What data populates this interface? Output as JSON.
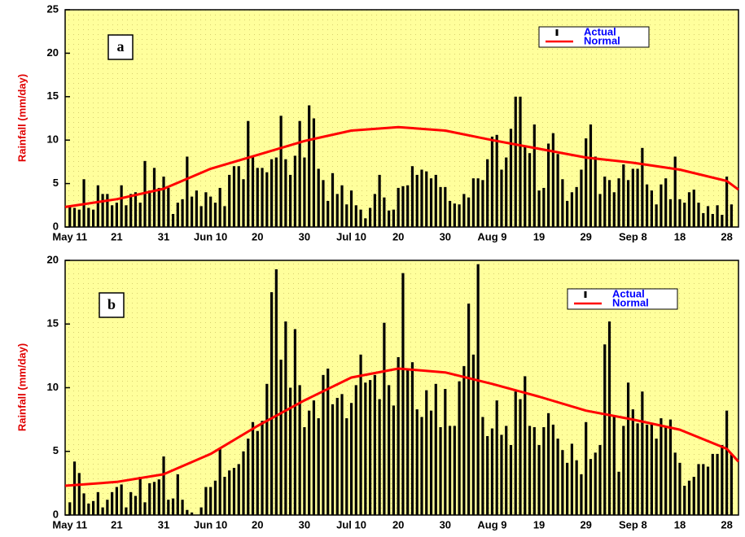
{
  "chart_data": [
    {
      "type": "bar",
      "panel_label": "a",
      "ylabel": "Rainfall (mm/day)",
      "x": [
        0,
        1,
        2,
        3,
        4,
        5,
        6,
        7,
        8,
        9,
        10,
        11,
        12,
        13,
        14,
        15,
        16,
        17,
        18,
        19,
        20,
        21,
        22,
        23,
        24,
        25,
        26,
        27,
        28,
        29,
        30,
        31,
        32,
        33,
        34,
        35,
        36,
        37,
        38,
        39,
        40,
        41,
        42,
        43,
        44,
        45,
        46,
        47,
        48,
        49,
        50,
        51,
        52,
        53,
        54,
        55,
        56,
        57,
        58,
        59,
        60,
        61,
        62,
        63,
        64,
        65,
        66,
        67,
        68,
        69,
        70,
        71,
        72,
        73,
        74,
        75,
        76,
        77,
        78,
        79,
        80,
        81,
        82,
        83,
        84,
        85,
        86,
        87,
        88,
        89,
        90,
        91,
        92,
        93,
        94,
        95,
        96,
        97,
        98,
        99,
        100,
        101,
        102,
        103,
        104,
        105,
        106,
        107,
        108,
        109,
        110,
        111,
        112,
        113,
        114,
        115,
        116,
        117,
        118,
        119,
        120,
        121,
        122,
        123,
        124,
        125,
        126,
        127,
        128,
        129,
        130,
        131,
        132,
        133,
        134,
        135,
        136,
        137,
        138,
        139,
        140,
        141
      ],
      "xlim": [
        -1,
        142.5
      ],
      "xticks": [
        {
          "value": 0,
          "label": "May 11"
        },
        {
          "value": 10,
          "label": "21"
        },
        {
          "value": 20,
          "label": "31"
        },
        {
          "value": 30,
          "label": "Jun 10"
        },
        {
          "value": 40,
          "label": "20"
        },
        {
          "value": 50,
          "label": "30"
        },
        {
          "value": 60,
          "label": "Jul 10"
        },
        {
          "value": 70,
          "label": "20"
        },
        {
          "value": 80,
          "label": "30"
        },
        {
          "value": 90,
          "label": "Aug 9"
        },
        {
          "value": 100,
          "label": "19"
        },
        {
          "value": 110,
          "label": "29"
        },
        {
          "value": 120,
          "label": "Sep 8"
        },
        {
          "value": 130,
          "label": "18"
        },
        {
          "value": 140,
          "label": "28"
        }
      ],
      "ylim": [
        0,
        25
      ],
      "yticks": [
        0,
        5,
        10,
        15,
        20,
        25
      ],
      "series": [
        {
          "name": "Actual",
          "type": "bar",
          "color": "#000000",
          "values": [
            2.3,
            2.2,
            2.0,
            5.5,
            2.2,
            2.0,
            4.8,
            3.8,
            3.8,
            2.5,
            2.8,
            4.8,
            2.5,
            3.8,
            4.0,
            2.8,
            7.6,
            4.2,
            6.8,
            4.5,
            5.8,
            4.5,
            1.5,
            2.8,
            3.2,
            8.1,
            3.5,
            4.2,
            2.4,
            4.0,
            3.5,
            2.8,
            4.5,
            2.4,
            6.0,
            7.0,
            7.0,
            5.5,
            12.2,
            8.2,
            6.8,
            6.8,
            6.3,
            7.8,
            8.0,
            12.8,
            7.8,
            6.0,
            8.2,
            12.2,
            8.0,
            14.0,
            12.5,
            6.7,
            5.4,
            3.0,
            6.2,
            3.8,
            4.8,
            2.6,
            4.2,
            2.5,
            2.0,
            1.0,
            2.2,
            3.8,
            6.0,
            3.4,
            1.9,
            2.0,
            4.5,
            4.7,
            4.8,
            7.0,
            6.0,
            6.6,
            6.4,
            5.6,
            6.0,
            4.6,
            4.6,
            3.0,
            2.7,
            2.6,
            3.8,
            3.4,
            5.6,
            5.6,
            5.4,
            7.8,
            10.4,
            10.6,
            6.6,
            8.0,
            11.3,
            15.0,
            15.0,
            9.3,
            8.5,
            11.8,
            4.2,
            4.5,
            9.6,
            10.8,
            8.4,
            5.5,
            3.0,
            4.0,
            4.6,
            6.6,
            10.2,
            11.8,
            8.1,
            3.8,
            5.8,
            5.4,
            4.0,
            5.6,
            7.2,
            5.4,
            6.7,
            6.7,
            9.1,
            4.9,
            4.2,
            2.6,
            4.9,
            5.6,
            3.2,
            8.1,
            3.2,
            2.8,
            4.0,
            4.3,
            2.8,
            1.6,
            2.4,
            1.5,
            2.5,
            1.4,
            5.8,
            2.6
          ]
        },
        {
          "name": "Normal",
          "type": "line",
          "color": "#ff0000",
          "x": [
            -1,
            10,
            20,
            30,
            40,
            50,
            60,
            70,
            80,
            90,
            100,
            110,
            120,
            130,
            140,
            142.5
          ],
          "values": [
            2.3,
            3.2,
            4.4,
            6.7,
            8.3,
            9.9,
            11.1,
            11.5,
            11.1,
            10.0,
            9.0,
            8.0,
            7.4,
            6.6,
            5.3,
            4.3
          ]
        }
      ]
    },
    {
      "type": "bar",
      "panel_label": "b",
      "ylabel": "Rainfall (mm/day)",
      "x": [
        0,
        1,
        2,
        3,
        4,
        5,
        6,
        7,
        8,
        9,
        10,
        11,
        12,
        13,
        14,
        15,
        16,
        17,
        18,
        19,
        20,
        21,
        22,
        23,
        24,
        25,
        26,
        27,
        28,
        29,
        30,
        31,
        32,
        33,
        34,
        35,
        36,
        37,
        38,
        39,
        40,
        41,
        42,
        43,
        44,
        45,
        46,
        47,
        48,
        49,
        50,
        51,
        52,
        53,
        54,
        55,
        56,
        57,
        58,
        59,
        60,
        61,
        62,
        63,
        64,
        65,
        66,
        67,
        68,
        69,
        70,
        71,
        72,
        73,
        74,
        75,
        76,
        77,
        78,
        79,
        80,
        81,
        82,
        83,
        84,
        85,
        86,
        87,
        88,
        89,
        90,
        91,
        92,
        93,
        94,
        95,
        96,
        97,
        98,
        99,
        100,
        101,
        102,
        103,
        104,
        105,
        106,
        107,
        108,
        109,
        110,
        111,
        112,
        113,
        114,
        115,
        116,
        117,
        118,
        119,
        120,
        121,
        122,
        123,
        124,
        125,
        126,
        127,
        128,
        129,
        130,
        131,
        132,
        133,
        134,
        135,
        136,
        137,
        138,
        139,
        140,
        141
      ],
      "xlim": [
        -1,
        142.5
      ],
      "xticks": [
        {
          "value": 0,
          "label": "May 11"
        },
        {
          "value": 10,
          "label": "21"
        },
        {
          "value": 20,
          "label": "31"
        },
        {
          "value": 30,
          "label": "Jun 10"
        },
        {
          "value": 40,
          "label": "20"
        },
        {
          "value": 50,
          "label": "30"
        },
        {
          "value": 60,
          "label": "Jul 10"
        },
        {
          "value": 70,
          "label": "20"
        },
        {
          "value": 80,
          "label": "30"
        },
        {
          "value": 90,
          "label": "Aug 9"
        },
        {
          "value": 100,
          "label": "19"
        },
        {
          "value": 110,
          "label": "29"
        },
        {
          "value": 120,
          "label": "Sep 8"
        },
        {
          "value": 130,
          "label": "18"
        },
        {
          "value": 140,
          "label": "28"
        }
      ],
      "ylim": [
        0,
        20
      ],
      "yticks": [
        0,
        5,
        10,
        15,
        20
      ],
      "series": [
        {
          "name": "Actual",
          "type": "bar",
          "color": "#000000",
          "values": [
            1.0,
            4.2,
            3.3,
            1.7,
            0.9,
            1.1,
            1.8,
            0.6,
            1.2,
            1.8,
            2.2,
            2.4,
            0.6,
            1.8,
            1.5,
            3.0,
            1.0,
            2.5,
            2.6,
            2.8,
            4.6,
            1.2,
            1.3,
            3.2,
            1.2,
            0.4,
            0.2,
            0.0,
            0.6,
            2.2,
            2.2,
            2.7,
            5.2,
            3.0,
            3.5,
            3.7,
            4.0,
            5.0,
            6.0,
            7.3,
            6.6,
            7.4,
            10.3,
            17.5,
            19.3,
            12.2,
            15.2,
            10.0,
            14.6,
            10.2,
            6.9,
            8.2,
            9.0,
            7.6,
            11.0,
            11.5,
            8.7,
            9.2,
            9.5,
            7.6,
            8.8,
            10.2,
            12.6,
            10.4,
            10.6,
            11.0,
            9.1,
            15.1,
            10.2,
            8.6,
            12.4,
            19.0,
            11.5,
            12.0,
            8.3,
            7.7,
            9.8,
            8.2,
            10.3,
            6.9,
            9.9,
            7.0,
            7.0,
            10.5,
            11.7,
            16.6,
            12.6,
            19.7,
            7.7,
            6.2,
            6.8,
            9.0,
            6.3,
            7.0,
            5.5,
            9.7,
            9.1,
            10.9,
            7.0,
            6.9,
            5.5,
            6.9,
            8.0,
            7.1,
            6.0,
            5.1,
            4.1,
            5.6,
            4.3,
            3.2,
            7.3,
            4.4,
            4.9,
            5.5,
            13.4,
            15.2,
            7.8,
            3.4,
            7.0,
            10.4,
            8.3,
            7.2,
            9.7,
            7.1,
            7.1,
            6.0,
            7.6,
            6.9,
            7.5,
            4.9,
            4.1,
            2.3,
            2.7,
            3.0,
            4.0,
            4.0,
            3.8,
            4.8,
            4.8,
            5.5,
            8.2,
            4.8
          ]
        },
        {
          "name": "Normal",
          "type": "line",
          "color": "#ff0000",
          "x": [
            -1,
            10,
            20,
            30,
            40,
            50,
            60,
            70,
            80,
            90,
            100,
            110,
            120,
            130,
            140,
            142.5
          ],
          "values": [
            2.3,
            2.6,
            3.2,
            4.8,
            7.0,
            9.0,
            10.8,
            11.5,
            11.2,
            10.3,
            9.3,
            8.2,
            7.5,
            6.7,
            5.2,
            4.2
          ]
        }
      ]
    }
  ]
}
